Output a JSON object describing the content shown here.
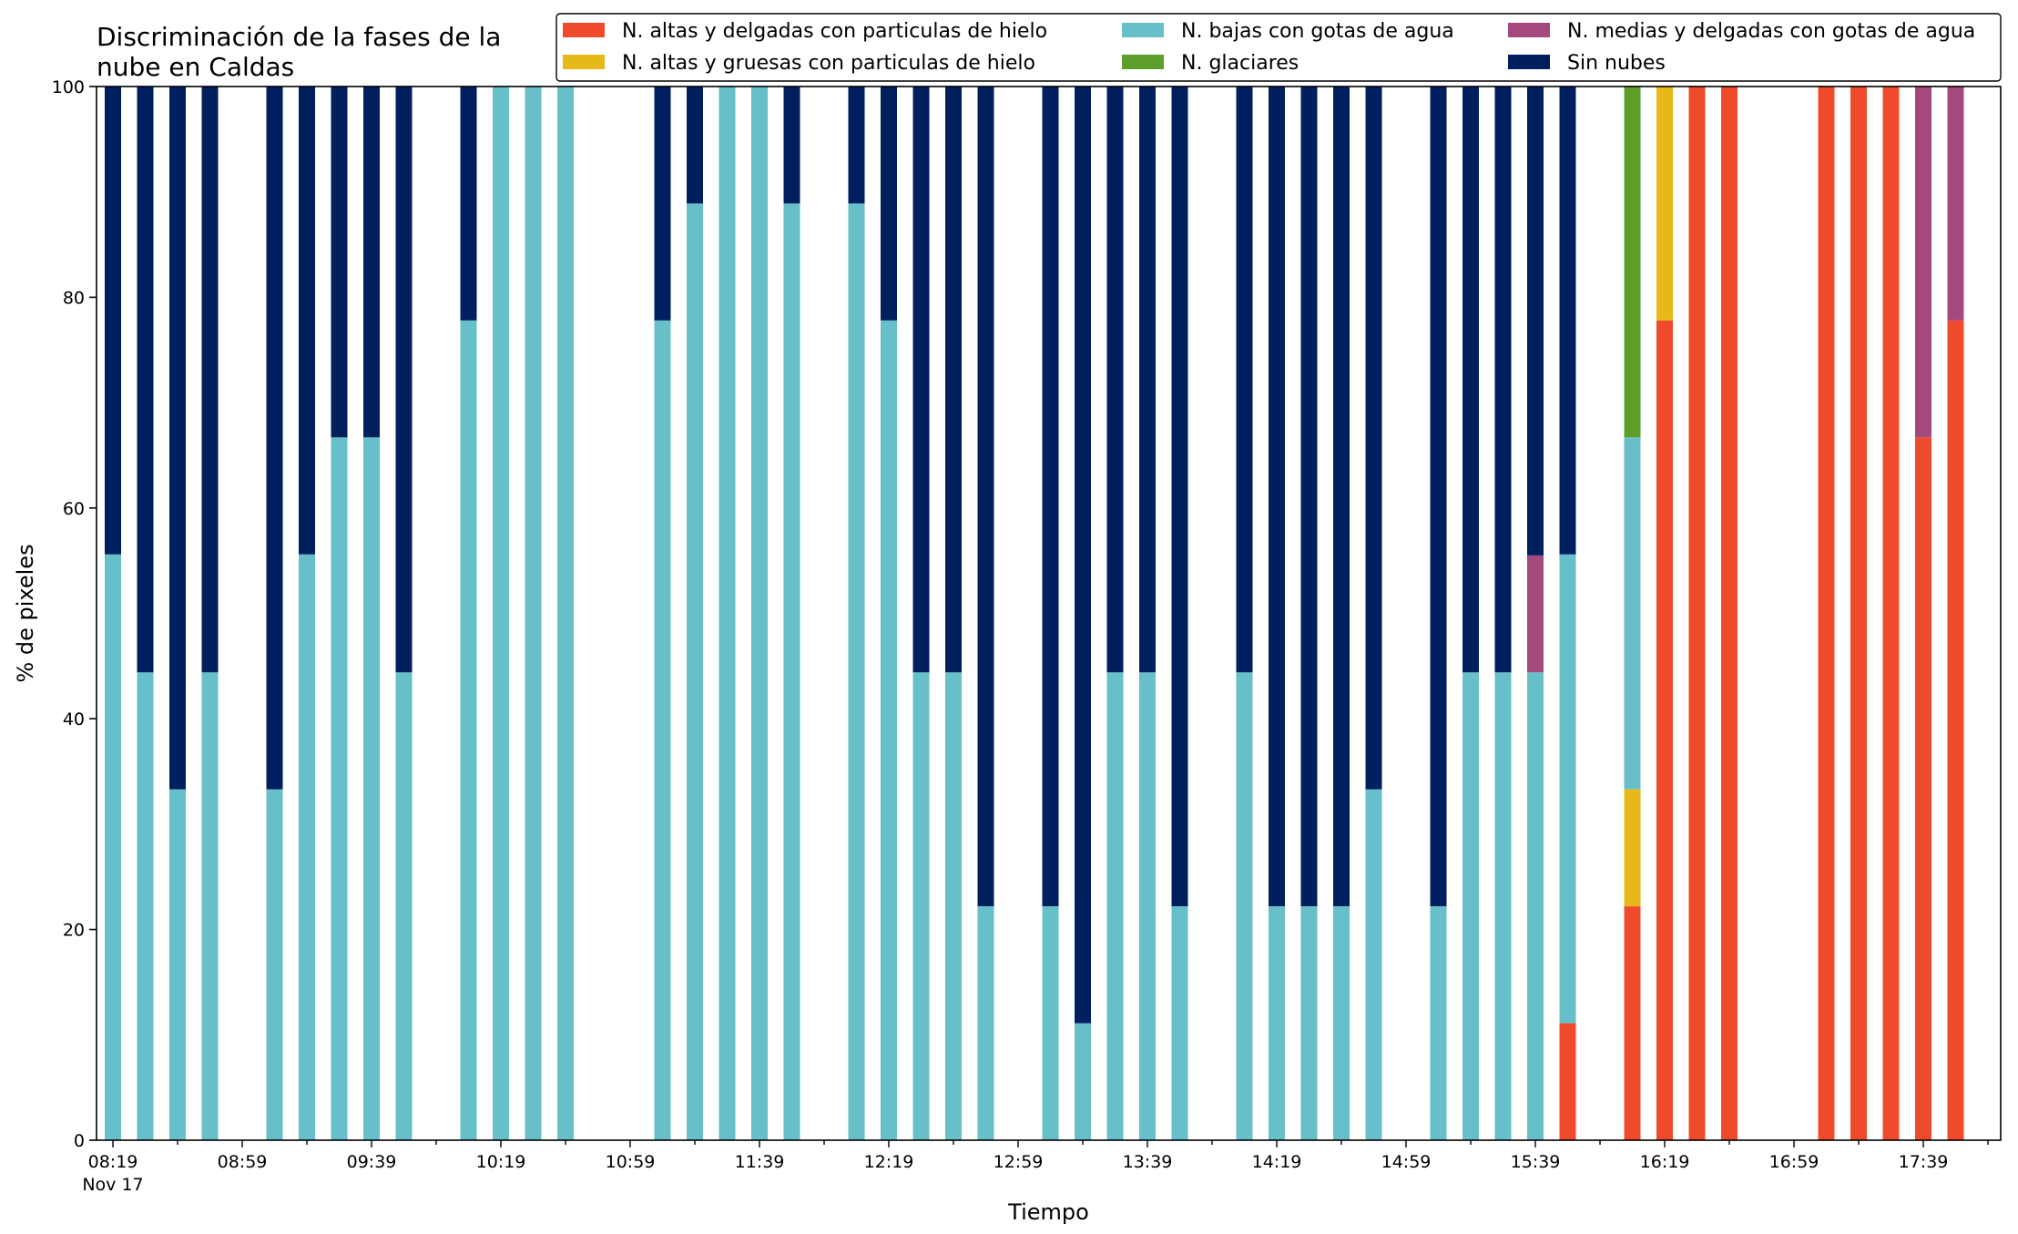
{
  "chart_data": {
    "type": "bar",
    "stacked": true,
    "title_lines": [
      "Discriminación de la fases de la",
      "nube en Caldas"
    ],
    "xlabel": "Tiempo",
    "ylabel": "% de pixeles",
    "ylim": [
      0,
      100
    ],
    "yticks": [
      "0",
      "20",
      "40",
      "60",
      "80",
      "100"
    ],
    "xticks": [
      "08:19",
      "08:59",
      "09:39",
      "10:19",
      "10:59",
      "11:39",
      "12:19",
      "12:59",
      "13:39",
      "14:19",
      "14:59",
      "15:39",
      "16:19",
      "16:59",
      "17:39"
    ],
    "xtick_sublabel": "Nov 17",
    "grid": false,
    "legend_position": "top",
    "slot_start": "08:19",
    "slot_interval_minutes": 10,
    "series": [
      {
        "name": "N. altas y delgadas con particulas de hielo",
        "color": "#ef4a2b"
      },
      {
        "name": "N. altas y gruesas con particulas de hielo",
        "color": "#e6b818"
      },
      {
        "name": "N. bajas con gotas de agua",
        "color": "#67bfc9"
      },
      {
        "name": "N. glaciares",
        "color": "#5d9f2a"
      },
      {
        "name": "N. medias y delgadas con gotas de agua",
        "color": "#a5487d"
      },
      {
        "name": "Sin nubes",
        "color": "#001f5e"
      }
    ],
    "bars": [
      {
        "slot": 0,
        "values": [
          0,
          0,
          55.6,
          0,
          0,
          44.4
        ]
      },
      {
        "slot": 1,
        "values": [
          0,
          0,
          44.4,
          0,
          0,
          55.6
        ]
      },
      {
        "slot": 2,
        "values": [
          0,
          0,
          33.3,
          0,
          0,
          66.7
        ]
      },
      {
        "slot": 3,
        "values": [
          0,
          0,
          44.4,
          0,
          0,
          55.6
        ]
      },
      {
        "slot": 5,
        "values": [
          0,
          0,
          33.3,
          0,
          0,
          66.7
        ]
      },
      {
        "slot": 6,
        "values": [
          0,
          0,
          55.6,
          0,
          0,
          44.4
        ]
      },
      {
        "slot": 7,
        "values": [
          0,
          0,
          66.7,
          0,
          0,
          33.3
        ]
      },
      {
        "slot": 8,
        "values": [
          0,
          0,
          66.7,
          0,
          0,
          33.3
        ]
      },
      {
        "slot": 9,
        "values": [
          0,
          0,
          44.4,
          0,
          0,
          55.6
        ]
      },
      {
        "slot": 11,
        "values": [
          0,
          0,
          77.8,
          0,
          0,
          22.2
        ]
      },
      {
        "slot": 12,
        "values": [
          0,
          0,
          100,
          0,
          0,
          0
        ]
      },
      {
        "slot": 13,
        "values": [
          0,
          0,
          100,
          0,
          0,
          0
        ]
      },
      {
        "slot": 14,
        "values": [
          0,
          0,
          100,
          0,
          0,
          0
        ]
      },
      {
        "slot": 17,
        "values": [
          0,
          0,
          77.8,
          0,
          0,
          22.2
        ]
      },
      {
        "slot": 18,
        "values": [
          0,
          0,
          88.9,
          0,
          0,
          11.1
        ]
      },
      {
        "slot": 19,
        "values": [
          0,
          0,
          100,
          0,
          0,
          0
        ]
      },
      {
        "slot": 20,
        "values": [
          0,
          0,
          100,
          0,
          0,
          0
        ]
      },
      {
        "slot": 21,
        "values": [
          0,
          0,
          88.9,
          0,
          0,
          11.1
        ]
      },
      {
        "slot": 23,
        "values": [
          0,
          0,
          88.9,
          0,
          0,
          11.1
        ]
      },
      {
        "slot": 24,
        "values": [
          0,
          0,
          77.8,
          0,
          0,
          22.2
        ]
      },
      {
        "slot": 25,
        "values": [
          0,
          0,
          44.4,
          0,
          0,
          55.6
        ]
      },
      {
        "slot": 26,
        "values": [
          0,
          0,
          44.4,
          0,
          0,
          55.6
        ]
      },
      {
        "slot": 27,
        "values": [
          0,
          0,
          22.2,
          0,
          0,
          77.8
        ]
      },
      {
        "slot": 29,
        "values": [
          0,
          0,
          22.2,
          0,
          0,
          77.8
        ]
      },
      {
        "slot": 30,
        "values": [
          0,
          0,
          11.1,
          0,
          0,
          88.9
        ]
      },
      {
        "slot": 31,
        "values": [
          0,
          0,
          44.4,
          0,
          0,
          55.6
        ]
      },
      {
        "slot": 32,
        "values": [
          0,
          0,
          44.4,
          0,
          0,
          55.6
        ]
      },
      {
        "slot": 33,
        "values": [
          0,
          0,
          22.2,
          0,
          0,
          77.8
        ]
      },
      {
        "slot": 35,
        "values": [
          0,
          0,
          44.4,
          0,
          0,
          55.6
        ]
      },
      {
        "slot": 36,
        "values": [
          0,
          0,
          22.2,
          0,
          0,
          77.8
        ]
      },
      {
        "slot": 37,
        "values": [
          0,
          0,
          22.2,
          0,
          0,
          77.8
        ]
      },
      {
        "slot": 38,
        "values": [
          0,
          0,
          22.2,
          0,
          0,
          77.8
        ]
      },
      {
        "slot": 39,
        "values": [
          0,
          0,
          33.3,
          0,
          0,
          66.7
        ]
      },
      {
        "slot": 41,
        "values": [
          0,
          0,
          22.2,
          0,
          0,
          77.8
        ]
      },
      {
        "slot": 42,
        "values": [
          0,
          0,
          44.4,
          0,
          0,
          55.6
        ]
      },
      {
        "slot": 43,
        "values": [
          0,
          0,
          44.4,
          0,
          0,
          55.6
        ]
      },
      {
        "slot": 44,
        "values": [
          0,
          0,
          44.4,
          0,
          11.1,
          44.5
        ]
      },
      {
        "slot": 45,
        "values": [
          11.1,
          0,
          44.5,
          0,
          0,
          44.4
        ]
      },
      {
        "slot": 47,
        "values": [
          22.2,
          11.1,
          33.4,
          33.3,
          0,
          0
        ]
      },
      {
        "slot": 48,
        "values": [
          77.8,
          22.2,
          0,
          0,
          0,
          0
        ]
      },
      {
        "slot": 49,
        "values": [
          100,
          0,
          0,
          0,
          0,
          0
        ]
      },
      {
        "slot": 50,
        "values": [
          100,
          0,
          0,
          0,
          0,
          0
        ]
      },
      {
        "slot": 53,
        "values": [
          100,
          0,
          0,
          0,
          0,
          0
        ]
      },
      {
        "slot": 54,
        "values": [
          100,
          0,
          0,
          0,
          0,
          0
        ]
      },
      {
        "slot": 55,
        "values": [
          100,
          0,
          0,
          0,
          0,
          0
        ]
      },
      {
        "slot": 56,
        "values": [
          66.7,
          0,
          0,
          0,
          33.3,
          0
        ]
      },
      {
        "slot": 57,
        "values": [
          77.8,
          0,
          0,
          0,
          22.2,
          0
        ]
      }
    ]
  }
}
